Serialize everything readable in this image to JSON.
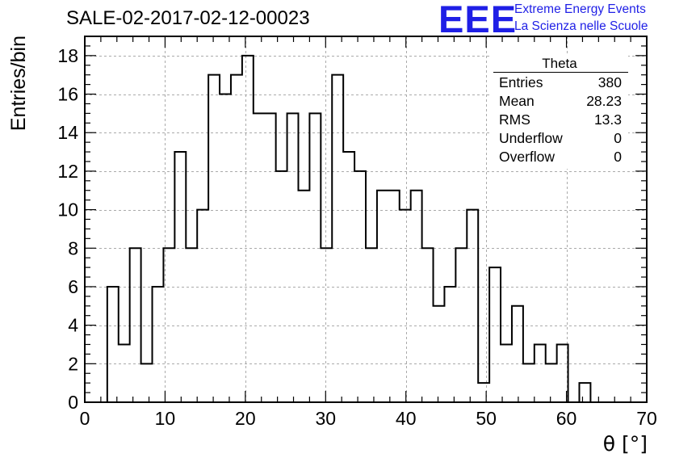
{
  "title": "SALE-02-2017-02-12-00023",
  "logo": {
    "mark": "EEE",
    "line1": "Extreme Energy Events",
    "line2": "La Scienza nelle Scuole",
    "color": "#1f1fe6"
  },
  "stats_box": {
    "title": "Theta",
    "rows": [
      {
        "label": "Entries",
        "value": "380"
      },
      {
        "label": "Mean",
        "value": "28.23"
      },
      {
        "label": "RMS",
        "value": "13.3"
      },
      {
        "label": "Underflow",
        "value": "0"
      },
      {
        "label": "Overflow",
        "value": "0"
      }
    ]
  },
  "chart_data": {
    "type": "histogram",
    "title": "SALE-02-2017-02-12-00023",
    "xlabel": "θ [°]",
    "ylabel": "Entries/bin",
    "xlim": [
      0,
      70
    ],
    "ylim": [
      0,
      19
    ],
    "xticks": [
      "0",
      "10",
      "20",
      "30",
      "40",
      "50",
      "60",
      "70"
    ],
    "yticks": [
      "0",
      "2",
      "4",
      "6",
      "8",
      "10",
      "12",
      "14",
      "16",
      "18"
    ],
    "grid": true,
    "bin_edges": [
      1.4,
      2.8,
      4.2,
      5.6,
      7.0,
      8.4,
      9.8,
      11.2,
      12.6,
      14.0,
      15.4,
      16.8,
      18.2,
      19.6,
      21.0,
      22.4,
      23.8,
      25.2,
      26.6,
      28.0,
      29.4,
      30.8,
      32.2,
      33.6,
      35.0,
      36.4,
      37.8,
      39.2,
      40.6,
      42.0,
      43.4,
      44.8,
      46.2,
      47.6,
      49.0,
      50.4,
      51.8,
      53.2,
      54.6,
      56.0,
      57.4,
      58.8,
      60.2,
      61.6,
      63.0
    ],
    "counts": [
      0,
      6,
      3,
      8,
      2,
      6,
      8,
      13,
      8,
      10,
      17,
      16,
      17,
      18,
      15,
      15,
      12,
      15,
      11,
      15,
      8,
      17,
      13,
      12,
      8,
      11,
      11,
      10,
      11,
      8,
      5,
      6,
      8,
      10,
      1,
      7,
      3,
      5,
      2,
      3,
      2,
      3,
      0,
      1
    ],
    "line_color": "#000000"
  }
}
